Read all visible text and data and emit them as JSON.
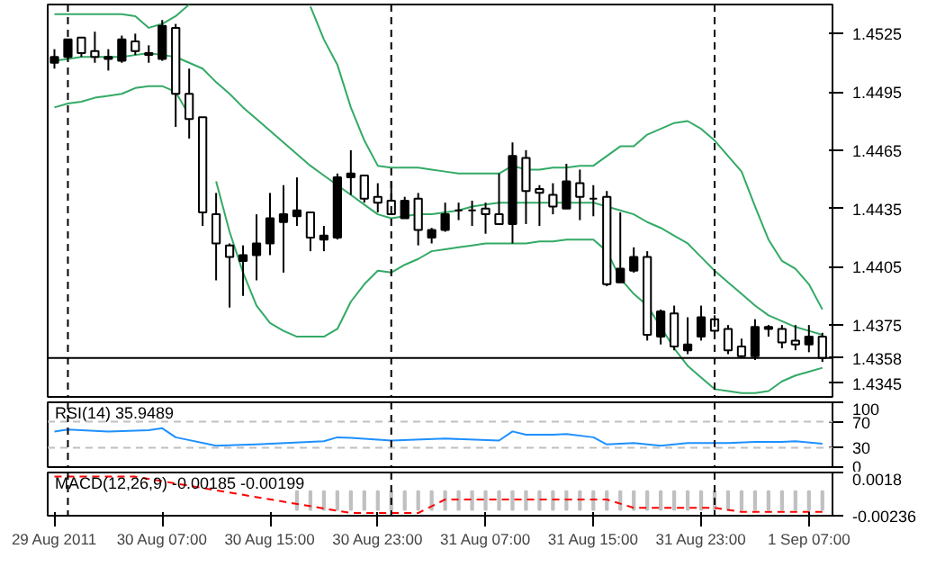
{
  "chart_data": [
    {
      "type": "candlestick",
      "tick_labels": "y",
      "grid": false,
      "x": [
        "2011-08-29T23:00",
        "2011-08-30T00:00",
        "2011-08-30T01:00",
        "2011-08-30T02:00",
        "2011-08-30T03:00",
        "2011-08-30T04:00",
        "2011-08-30T05:00",
        "2011-08-30T06:00",
        "2011-08-30T07:00",
        "2011-08-30T08:00",
        "2011-08-30T09:00",
        "2011-08-30T10:00",
        "2011-08-30T11:00",
        "2011-08-30T12:00",
        "2011-08-30T13:00",
        "2011-08-30T14:00",
        "2011-08-30T15:00",
        "2011-08-30T16:00",
        "2011-08-30T17:00",
        "2011-08-30T18:00",
        "2011-08-30T19:00",
        "2011-08-30T20:00",
        "2011-08-30T21:00",
        "2011-08-30T22:00",
        "2011-08-30T23:00",
        "2011-08-31T00:00",
        "2011-08-31T01:00",
        "2011-08-31T02:00",
        "2011-08-31T03:00",
        "2011-08-31T04:00",
        "2011-08-31T05:00",
        "2011-08-31T06:00",
        "2011-08-31T07:00",
        "2011-08-31T08:00",
        "2011-08-31T09:00",
        "2011-08-31T10:00",
        "2011-08-31T11:00",
        "2011-08-31T12:00",
        "2011-08-31T13:00",
        "2011-08-31T14:00",
        "2011-08-31T15:00",
        "2011-08-31T16:00",
        "2011-08-31T17:00",
        "2011-08-31T18:00",
        "2011-08-31T19:00",
        "2011-08-31T20:00",
        "2011-08-31T21:00",
        "2011-08-31T22:00",
        "2011-08-31T23:00",
        "2011-09-01T00:00",
        "2011-09-01T01:00",
        "2011-09-01T02:00",
        "2011-09-01T03:00",
        "2011-09-01T04:00",
        "2011-09-01T05:00",
        "2011-09-01T06:00",
        "2011-09-01T07:00",
        "2011-09-01T08:00"
      ],
      "ohlc": [
        [
          1.451,
          1.4517,
          1.4507,
          1.4513
        ],
        [
          1.4513,
          1.4522,
          1.4512,
          1.4522
        ],
        [
          1.4523,
          1.4523,
          1.4513,
          1.4515
        ],
        [
          1.4516,
          1.4526,
          1.451,
          1.4513
        ],
        [
          1.4512,
          1.4517,
          1.4506,
          1.4513
        ],
        [
          1.4511,
          1.4524,
          1.451,
          1.4522
        ],
        [
          1.4521,
          1.4525,
          1.4514,
          1.4516
        ],
        [
          1.4515,
          1.4519,
          1.451,
          1.4514
        ],
        [
          1.4512,
          1.4532,
          1.4511,
          1.4529
        ],
        [
          1.4528,
          1.453,
          1.4477,
          1.4494
        ],
        [
          1.4494,
          1.4507,
          1.4471,
          1.4481
        ],
        [
          1.4482,
          1.4482,
          1.4426,
          1.4433
        ],
        [
          1.4432,
          1.4443,
          1.4398,
          1.4417
        ],
        [
          1.4416,
          1.4417,
          1.4384,
          1.441
        ],
        [
          1.4408,
          1.4416,
          1.439,
          1.4411
        ],
        [
          1.4411,
          1.4432,
          1.4398,
          1.4417
        ],
        [
          1.4417,
          1.4443,
          1.4411,
          1.443
        ],
        [
          1.4428,
          1.4447,
          1.4402,
          1.4432
        ],
        [
          1.4431,
          1.4451,
          1.4426,
          1.4434
        ],
        [
          1.4433,
          1.4433,
          1.4413,
          1.442
        ],
        [
          1.4419,
          1.4426,
          1.4413,
          1.4421
        ],
        [
          1.442,
          1.4453,
          1.4419,
          1.4451
        ],
        [
          1.4451,
          1.4465,
          1.4442,
          1.4453
        ],
        [
          1.4452,
          1.4452,
          1.4438,
          1.444
        ],
        [
          1.4441,
          1.4448,
          1.4433,
          1.4438
        ],
        [
          1.4439,
          1.4449,
          1.4432,
          1.4432
        ],
        [
          1.443,
          1.4441,
          1.443,
          1.4439
        ],
        [
          1.444,
          1.4443,
          1.4416,
          1.4424
        ],
        [
          1.442,
          1.4425,
          1.4417,
          1.4424
        ],
        [
          1.4424,
          1.4438,
          1.4423,
          1.4432
        ],
        [
          1.4434,
          1.4438,
          1.4429,
          1.4434
        ],
        [
          1.4434,
          1.4439,
          1.4426,
          1.4434
        ],
        [
          1.4435,
          1.4438,
          1.4422,
          1.4432
        ],
        [
          1.4432,
          1.4453,
          1.4427,
          1.4427
        ],
        [
          1.4427,
          1.4469,
          1.4417,
          1.4462
        ],
        [
          1.4461,
          1.4465,
          1.4427,
          1.4444
        ],
        [
          1.4445,
          1.4447,
          1.4426,
          1.4443
        ],
        [
          1.4442,
          1.4448,
          1.4432,
          1.4436
        ],
        [
          1.4435,
          1.4458,
          1.4435,
          1.4449
        ],
        [
          1.4448,
          1.4455,
          1.4429,
          1.4441
        ],
        [
          1.444,
          1.4447,
          1.4431,
          1.444
        ],
        [
          1.4441,
          1.4444,
          1.4395,
          1.4396
        ],
        [
          1.4397,
          1.4433,
          1.4397,
          1.4404
        ],
        [
          1.4403,
          1.4415,
          1.4402,
          1.441
        ],
        [
          1.441,
          1.4413,
          1.4367,
          1.437
        ],
        [
          1.4369,
          1.4383,
          1.4365,
          1.4382
        ],
        [
          1.4381,
          1.4385,
          1.4362,
          1.4364
        ],
        [
          1.4362,
          1.4379,
          1.436,
          1.4365
        ],
        [
          1.4369,
          1.4385,
          1.4367,
          1.4379
        ],
        [
          1.4378,
          1.438,
          1.4369,
          1.4372
        ],
        [
          1.4373,
          1.4375,
          1.436,
          1.4362
        ],
        [
          1.4364,
          1.4368,
          1.4358,
          1.4359
        ],
        [
          1.4359,
          1.4378,
          1.4357,
          1.4374
        ],
        [
          1.4373,
          1.4375,
          1.4369,
          1.4374
        ],
        [
          1.4373,
          1.4375,
          1.4363,
          1.4366
        ],
        [
          1.4367,
          1.4375,
          1.4362,
          1.4365
        ],
        [
          1.4365,
          1.4375,
          1.4361,
          1.4369
        ],
        [
          1.4369,
          1.4371,
          1.4356,
          1.4358
        ]
      ],
      "series": [
        {
          "type": "line",
          "color": "#33aa66",
          "values": [
            1.4535,
            1.4535,
            1.4535,
            1.4535,
            1.4535,
            1.4535,
            1.4534,
            1.4528,
            1.453,
            1.4534,
            1.454,
            null,
            null,
            null,
            null,
            null,
            null,
            null,
            null,
            1.4539,
            1.4522,
            1.4509,
            1.4487,
            1.447,
            1.4457,
            1.4456,
            1.4456,
            1.4456,
            1.4455,
            1.4454,
            1.4453,
            1.4453,
            1.4453,
            1.4453,
            1.4457,
            1.4455,
            1.4455,
            1.4456,
            1.4456,
            1.4457,
            1.4457,
            1.4462,
            1.4467,
            1.4467,
            1.4473,
            1.4476,
            1.4479,
            1.448,
            1.4476,
            1.447,
            1.4462,
            1.4454,
            1.4436,
            1.4419,
            1.4408,
            1.4404,
            1.4396,
            1.4383
          ]
        },
        {
          "type": "line",
          "color": "#33aa66",
          "values": [
            1.4511,
            1.4512,
            1.4513,
            1.4513,
            1.4513,
            1.4513,
            1.4514,
            1.4515,
            1.4514,
            1.4513,
            1.451,
            1.4507,
            1.45,
            1.4494,
            1.4487,
            1.4481,
            1.4475,
            1.4469,
            1.4463,
            1.4457,
            1.4452,
            1.4447,
            1.4442,
            1.4437,
            1.4432,
            1.443,
            1.4431,
            1.4432,
            1.4432,
            1.4433,
            1.4434,
            1.4436,
            1.4437,
            1.4438,
            1.4438,
            1.4438,
            1.4438,
            1.4438,
            1.4438,
            1.4438,
            1.4438,
            1.4436,
            1.4434,
            1.4432,
            1.4428,
            1.4425,
            1.4421,
            1.4417,
            1.441,
            1.4403,
            1.4397,
            1.4391,
            1.4385,
            1.438,
            1.4377,
            1.4374,
            1.4372,
            1.437
          ]
        },
        {
          "type": "line",
          "color": "#33aa66",
          "values": [
            1.4487,
            1.4489,
            1.449,
            1.4492,
            1.4493,
            1.4494,
            1.4497,
            1.4498,
            1.4498,
            1.4495,
            1.4483,
            null,
            1.4449,
            1.4423,
            1.4402,
            1.4385,
            1.4376,
            1.4372,
            1.4369,
            1.4369,
            1.4369,
            1.4373,
            1.4387,
            1.4396,
            1.4403,
            1.4402,
            1.4406,
            1.4409,
            1.4413,
            1.4414,
            1.4415,
            1.4416,
            1.4417,
            1.4417,
            1.4417,
            1.4417,
            1.4418,
            1.4418,
            1.4419,
            1.4419,
            1.4419,
            1.4413,
            1.4399,
            1.4391,
            1.4385,
            1.4374,
            1.4363,
            1.4354,
            1.4348,
            1.4342,
            1.4341,
            1.434,
            1.434,
            1.4341,
            1.4346,
            1.4349,
            1.4351,
            1.4353
          ]
        }
      ],
      "xlim": [
        "2011-08-29T22:30",
        "2011-09-01T08:45"
      ],
      "ylim": [
        1.4338,
        1.454
      ],
      "yticks": [
        1.4525,
        1.4495,
        1.4465,
        1.4435,
        1.4405,
        1.4375,
        1.4345
      ],
      "ref_lines": [
        {
          "axis": "x",
          "value": "2011-08-30T00:00",
          "label": null,
          "line_style": "dashed",
          "color": "#000000"
        },
        {
          "axis": "x",
          "value": "2011-08-31T00:00",
          "label": null,
          "line_style": "dashed",
          "color": "#000000"
        },
        {
          "axis": "x",
          "value": "2011-09-01T00:00",
          "label": null,
          "line_style": "dashed",
          "color": "#000000"
        },
        {
          "axis": "y",
          "value": 1.4358,
          "label": "1.4358",
          "color": "#000000"
        }
      ]
    },
    {
      "type": "line",
      "title": "RSI(14) 35.9489",
      "tick_labels": "y",
      "grid": false,
      "color": "#1e90ff",
      "x": [
        "2011-08-29T23:00",
        "2011-08-30T00:00",
        "2011-08-30T03:00",
        "2011-08-30T06:00",
        "2011-08-30T07:00",
        "2011-08-30T08:00",
        "2011-08-30T11:00",
        "2011-08-30T14:00",
        "2011-08-30T19:00",
        "2011-08-30T20:00",
        "2011-08-30T21:00",
        "2011-08-31T00:00",
        "2011-08-31T04:00",
        "2011-08-31T08:00",
        "2011-08-31T09:00",
        "2011-08-31T10:00",
        "2011-08-31T12:00",
        "2011-08-31T13:00",
        "2011-08-31T15:00",
        "2011-08-31T16:00",
        "2011-08-31T18:00",
        "2011-08-31T20:00",
        "2011-08-31T22:00",
        "2011-09-01T01:00",
        "2011-09-01T03:00",
        "2011-09-01T05:00",
        "2011-09-01T06:00",
        "2011-09-01T08:00"
      ],
      "values": [
        55,
        58,
        55,
        57,
        60,
        46,
        33,
        35,
        40,
        46,
        45,
        41,
        44,
        41,
        55,
        50,
        50,
        51,
        46,
        35,
        37,
        33,
        37,
        37,
        39,
        39,
        40,
        36
      ],
      "xlim": [
        "2011-08-29T22:30",
        "2011-09-01T08:45"
      ],
      "ylim": [
        0,
        100
      ],
      "yticks": [
        100,
        70,
        30,
        0
      ],
      "ref_lines": [
        {
          "axis": "y",
          "value": 70,
          "label": null,
          "line_style": "dashed",
          "color": "#c0c0c0"
        },
        {
          "axis": "y",
          "value": 30,
          "label": null,
          "line_style": "dashed",
          "color": "#c0c0c0"
        },
        {
          "axis": "x",
          "value": "2011-08-30T00:00",
          "label": null,
          "line_style": "dashed",
          "color": "#000000"
        },
        {
          "axis": "x",
          "value": "2011-08-31T00:00",
          "label": null,
          "line_style": "dashed",
          "color": "#000000"
        },
        {
          "axis": "x",
          "value": "2011-09-01T00:00",
          "label": null,
          "line_style": "dashed",
          "color": "#000000"
        }
      ]
    },
    {
      "type": "bar",
      "title": "MACD(12,26,9) -0.00185 -0.00199",
      "grid": false,
      "series": [
        {
          "type": "bar",
          "color": "#c0c0c0",
          "x": [
            "2011-08-30T17:00",
            "2011-08-30T18:00",
            "2011-08-30T19:00",
            "2011-08-30T20:00",
            "2011-08-30T21:00",
            "2011-08-30T22:00",
            "2011-08-30T23:00",
            "2011-08-31T00:00",
            "2011-08-31T01:00",
            "2011-08-31T02:00",
            "2011-08-31T03:00",
            "2011-08-31T04:00",
            "2011-08-31T05:00",
            "2011-08-31T06:00",
            "2011-08-31T07:00",
            "2011-08-31T08:00",
            "2011-08-31T09:00",
            "2011-08-31T10:00",
            "2011-08-31T11:00",
            "2011-08-31T12:00",
            "2011-08-31T13:00",
            "2011-08-31T14:00",
            "2011-08-31T15:00",
            "2011-08-31T16:00",
            "2011-08-31T17:00",
            "2011-08-31T18:00",
            "2011-08-31T19:00",
            "2011-08-31T20:00",
            "2011-08-31T21:00",
            "2011-08-31T22:00",
            "2011-08-31T23:00",
            "2011-09-01T00:00",
            "2011-09-01T01:00",
            "2011-09-01T02:00",
            "2011-09-01T03:00",
            "2011-09-01T04:00",
            "2011-09-01T05:00",
            "2011-09-01T06:00",
            "2011-09-01T07:00",
            "2011-09-01T08:00"
          ],
          "values": [
            -0.0018,
            -0.0018,
            -0.0018,
            -0.0018,
            -0.0018,
            -0.0018,
            -0.0018,
            -0.0018,
            -0.0018,
            -0.0018,
            -0.0018,
            -0.0018,
            -0.0018,
            -0.0018,
            -0.0018,
            -0.0018,
            -0.0018,
            -0.0018,
            -0.0018,
            -0.0018,
            -0.0018,
            -0.0018,
            -0.0018,
            -0.0018,
            -0.0018,
            -0.0018,
            -0.0018,
            -0.0018,
            -0.0018,
            -0.0018,
            -0.0018,
            -0.0018,
            -0.0018,
            -0.0018,
            -0.0018,
            -0.0018,
            -0.0018,
            -0.0018,
            -0.0018,
            -0.0018
          ]
        },
        {
          "type": "line",
          "color": "#ff0000",
          "line_style": "dashed",
          "x": [
            "2011-08-29T23:00",
            "2011-08-30T05:00",
            "2011-08-30T21:00",
            "2011-08-31T02:00",
            "2011-08-31T04:00",
            "2011-08-31T16:00",
            "2011-08-31T18:00",
            "2011-09-01T00:00",
            "2011-09-01T02:00",
            "2011-09-01T08:00"
          ],
          "values": [
            0.0014,
            0.0014,
            -0.0021,
            -0.0021,
            -0.0008,
            -0.0008,
            -0.0016,
            -0.0016,
            -0.002,
            -0.002
          ]
        }
      ],
      "xlim": [
        "2011-08-29T22:30",
        "2011-09-01T08:45"
      ],
      "ylim": [
        -0.00236,
        0.0018
      ],
      "yticks": [
        0.0018,
        -0.00236
      ],
      "xticks": [
        {
          "value": "2011-08-29T23:00",
          "label": "29 Aug 2011"
        },
        {
          "value": "2011-08-30T07:00",
          "label": "30 Aug 07:00"
        },
        {
          "value": "2011-08-30T15:00",
          "label": "30 Aug 15:00"
        },
        {
          "value": "2011-08-30T23:00",
          "label": "30 Aug 23:00"
        },
        {
          "value": "2011-08-31T07:00",
          "label": "31 Aug 07:00"
        },
        {
          "value": "2011-08-31T15:00",
          "label": "31 Aug 15:00"
        },
        {
          "value": "2011-08-31T23:00",
          "label": "31 Aug 23:00"
        },
        {
          "value": "2011-09-01T07:00",
          "label": "1 Sep 07:00"
        }
      ],
      "ref_lines": [
        {
          "axis": "x",
          "value": "2011-08-30T00:00",
          "label": null,
          "line_style": "dashed",
          "color": "#000000"
        },
        {
          "axis": "x",
          "value": "2011-08-31T00:00",
          "label": null,
          "line_style": "dashed",
          "color": "#000000"
        },
        {
          "axis": "x",
          "value": "2011-09-01T00:00",
          "label": null,
          "line_style": "dashed",
          "color": "#000000"
        }
      ]
    }
  ]
}
